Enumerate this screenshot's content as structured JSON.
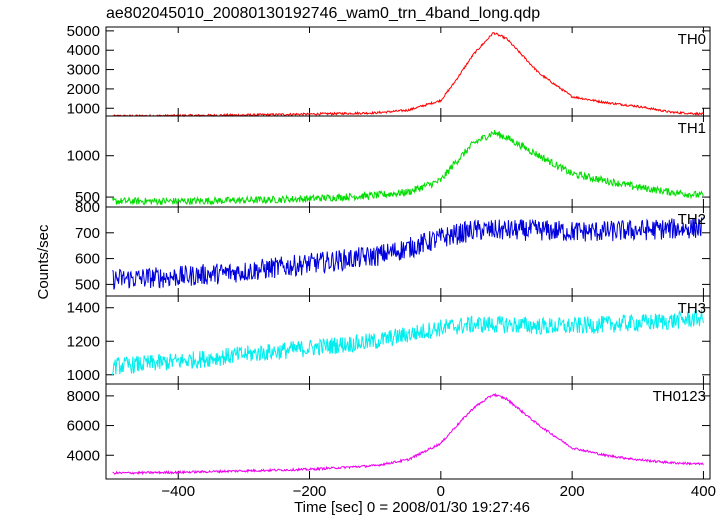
{
  "chart_data": {
    "type": "line",
    "title": "ae802045010_20080130192746_wam0_trn_4band_long.qdp",
    "xlabel": "Time [sec] 0 = 2008/01/30 19:27:46",
    "ylabel": "Counts/sec",
    "xlim": [
      -510,
      410
    ],
    "xticks": [
      -400,
      -200,
      0,
      200,
      400
    ],
    "grid": false,
    "panels": [
      {
        "name": "TH0",
        "color": "#ff0000",
        "ylim": [
          600,
          5200
        ],
        "yticks": [
          1000,
          2000,
          3000,
          4000,
          5000
        ],
        "x": [
          -500,
          -400,
          -300,
          -200,
          -100,
          -50,
          0,
          20,
          50,
          80,
          100,
          150,
          200,
          250,
          300,
          350,
          400
        ],
        "values": [
          600,
          620,
          650,
          700,
          760,
          900,
          1400,
          2300,
          3800,
          4900,
          4600,
          2800,
          1600,
          1300,
          1100,
          800,
          700
        ]
      },
      {
        "name": "TH1",
        "color": "#00dd00",
        "ylim": [
          380,
          1480
        ],
        "yticks": [
          500,
          1000
        ],
        "x": [
          -500,
          -400,
          -300,
          -200,
          -100,
          -50,
          0,
          20,
          50,
          80,
          100,
          150,
          200,
          250,
          300,
          350,
          400
        ],
        "values": [
          450,
          450,
          460,
          480,
          520,
          560,
          700,
          900,
          1150,
          1280,
          1220,
          1000,
          780,
          700,
          620,
          560,
          520
        ]
      },
      {
        "name": "TH2",
        "color": "#0000dd",
        "ylim": [
          455,
          800
        ],
        "yticks": [
          500,
          600,
          700,
          800
        ],
        "x": [
          -500,
          -400,
          -300,
          -200,
          -100,
          -50,
          0,
          50,
          100,
          150,
          200,
          250,
          300,
          350,
          400
        ],
        "values": [
          520,
          530,
          550,
          580,
          610,
          640,
          680,
          710,
          710,
          710,
          705,
          705,
          710,
          715,
          720
        ]
      },
      {
        "name": "TH3",
        "color": "#00eeee",
        "ylim": [
          945,
          1470
        ],
        "yticks": [
          1000,
          1200,
          1400
        ],
        "x": [
          -500,
          -400,
          -300,
          -200,
          -100,
          -50,
          0,
          50,
          100,
          150,
          200,
          250,
          300,
          350,
          400
        ],
        "values": [
          1050,
          1080,
          1120,
          1160,
          1200,
          1240,
          1280,
          1300,
          1300,
          1290,
          1290,
          1300,
          1310,
          1320,
          1340
        ]
      },
      {
        "name": "TH0123",
        "color": "#ee00ee",
        "ylim": [
          2400,
          8800
        ],
        "yticks": [
          4000,
          6000,
          8000
        ],
        "x": [
          -500,
          -400,
          -300,
          -200,
          -100,
          -50,
          0,
          20,
          50,
          80,
          100,
          150,
          200,
          250,
          300,
          350,
          400
        ],
        "values": [
          2800,
          2850,
          2950,
          3050,
          3300,
          3700,
          4800,
          5800,
          7200,
          8100,
          7800,
          6000,
          4500,
          4000,
          3700,
          3500,
          3400
        ]
      }
    ]
  }
}
